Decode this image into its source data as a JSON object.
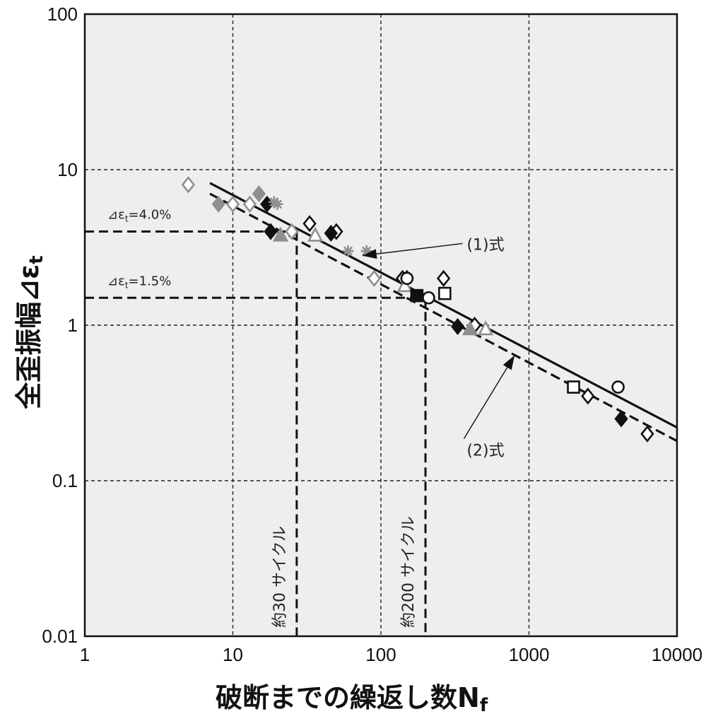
{
  "chart_data": {
    "type": "scatter",
    "x_scale": "log",
    "y_scale": "log",
    "xlim": [
      1,
      10000
    ],
    "ylim": [
      0.01,
      100
    ],
    "grid": true,
    "background": "#eeeeee",
    "xlabel": "破断までの繰返し数N",
    "xlabel_sub": "f",
    "ylabel": "全歪振幅⊿ε",
    "ylabel_sub": "t",
    "xticks": [
      {
        "value": 1,
        "label": "1"
      },
      {
        "value": 10,
        "label": "10"
      },
      {
        "value": 100,
        "label": "100"
      },
      {
        "value": 1000,
        "label": "1000"
      },
      {
        "value": 10000,
        "label": "10000"
      }
    ],
    "yticks": [
      {
        "value": 0.01,
        "label": "0.01"
      },
      {
        "value": 0.1,
        "label": "0.1"
      },
      {
        "value": 1,
        "label": "1"
      },
      {
        "value": 10,
        "label": "10"
      },
      {
        "value": 100,
        "label": "100"
      }
    ],
    "lines": [
      {
        "name": "(1)式",
        "style": "solid",
        "points": [
          [
            7,
            8.2
          ],
          [
            10000,
            0.22
          ]
        ]
      },
      {
        "name": "(2)式",
        "style": "dashed",
        "points": [
          [
            7,
            7.0
          ],
          [
            10000,
            0.18
          ]
        ]
      }
    ],
    "guides": [
      {
        "label_prefix": "⊿ε",
        "label_sub": "t",
        "label_value": "=4.0%",
        "y": 4.0,
        "x_end": 27
      },
      {
        "label_prefix": "⊿ε",
        "label_sub": "t",
        "label_value": "=1.5%",
        "y": 1.5,
        "x_end": 200
      }
    ],
    "cycle_marks": [
      {
        "label": "約30 サイクル",
        "x": 27,
        "y_top": 4.0
      },
      {
        "label": "約200 サイクル",
        "x": 200,
        "y_top": 1.5
      }
    ],
    "annotations": [
      {
        "text": "(1)式",
        "text_at": [
          380,
          3.35
        ],
        "arrow_to": [
          75,
          2.8
        ]
      },
      {
        "text": "(2)式",
        "text_at": [
          380,
          0.145
        ],
        "arrow_to": [
          800,
          0.64
        ]
      }
    ],
    "marker_colors": {
      "black": "#111111",
      "gray": "#8f8f8f"
    },
    "series": [
      {
        "marker": "diamond-open",
        "color": "#111111",
        "points": [
          [
            33,
            4.5
          ],
          [
            50,
            4.0
          ],
          [
            140,
            2.0
          ],
          [
            150,
            2.0
          ],
          [
            265,
            2.0
          ],
          [
            430,
            1.0
          ],
          [
            2500,
            0.35
          ],
          [
            6300,
            0.2
          ]
        ]
      },
      {
        "marker": "diamond-filled",
        "color": "#111111",
        "points": [
          [
            17,
            6.0
          ],
          [
            18,
            4.0
          ],
          [
            46,
            3.9
          ],
          [
            330,
            0.98
          ],
          [
            4200,
            0.25
          ]
        ]
      },
      {
        "marker": "diamond-open",
        "color": "#8f8f8f",
        "points": [
          [
            5,
            8.0
          ],
          [
            10,
            6.0
          ],
          [
            13,
            6.0
          ],
          [
            25,
            4.0
          ],
          [
            90,
            2.0
          ]
        ]
      },
      {
        "marker": "diamond-filled",
        "color": "#8f8f8f",
        "points": [
          [
            8,
            6.0
          ],
          [
            15,
            7.0
          ]
        ]
      },
      {
        "marker": "triangle-open",
        "color": "#8f8f8f",
        "points": [
          [
            36,
            3.8
          ],
          [
            145,
            1.8
          ],
          [
            510,
            0.95
          ]
        ]
      },
      {
        "marker": "triangle-filled",
        "color": "#8f8f8f",
        "points": [
          [
            21,
            3.8
          ],
          [
            400,
            0.95
          ]
        ]
      },
      {
        "marker": "asterisk",
        "color": "#8f8f8f",
        "points": [
          [
            19,
            6.2
          ],
          [
            20,
            6.0
          ],
          [
            60,
            3.0
          ],
          [
            80,
            3.0
          ]
        ]
      },
      {
        "marker": "square-open",
        "color": "#111111",
        "points": [
          [
            270,
            1.6
          ],
          [
            2000,
            0.4
          ]
        ]
      },
      {
        "marker": "square-filled",
        "color": "#111111",
        "points": [
          [
            175,
            1.55
          ]
        ]
      },
      {
        "marker": "circle-open",
        "color": "#111111",
        "points": [
          [
            150,
            2.0
          ],
          [
            210,
            1.5
          ],
          [
            4000,
            0.4
          ]
        ]
      }
    ]
  }
}
